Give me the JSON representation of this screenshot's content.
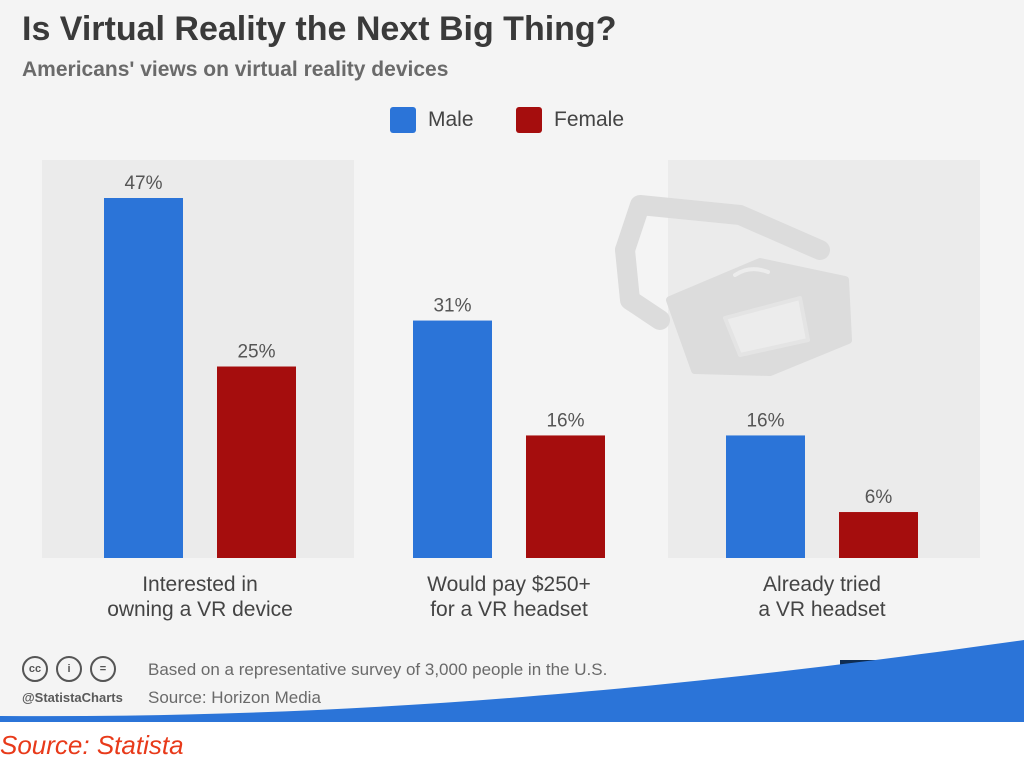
{
  "header": {
    "title": "Is Virtual Reality the Next Big Thing?",
    "subtitle": "Americans' views on virtual reality devices"
  },
  "chart_data": {
    "type": "bar",
    "title": "Is Virtual Reality the Next Big Thing?",
    "subtitle": "Americans' views on virtual reality devices",
    "categories": [
      [
        "Interested in",
        "owning a VR device"
      ],
      [
        "Would pay $250+",
        "for a VR headset"
      ],
      [
        "Already tried",
        "a VR headset"
      ]
    ],
    "series": [
      {
        "name": "Male",
        "color": "#2b74d8",
        "values": [
          47,
          31,
          16
        ]
      },
      {
        "name": "Female",
        "color": "#a50d0d",
        "values": [
          25,
          16,
          6
        ]
      }
    ],
    "value_suffix": "%",
    "ylim": [
      0,
      47
    ],
    "legend": "top-center",
    "grid": false
  },
  "footer": {
    "note": "Based on a representative survey of 3,000 people in the U.S.",
    "source": "Source: Horizon Media",
    "handle": "@StatistaCharts",
    "license_icons": [
      "cc",
      "i",
      "="
    ],
    "brand": "statista"
  },
  "credit": "Source: Statista"
}
